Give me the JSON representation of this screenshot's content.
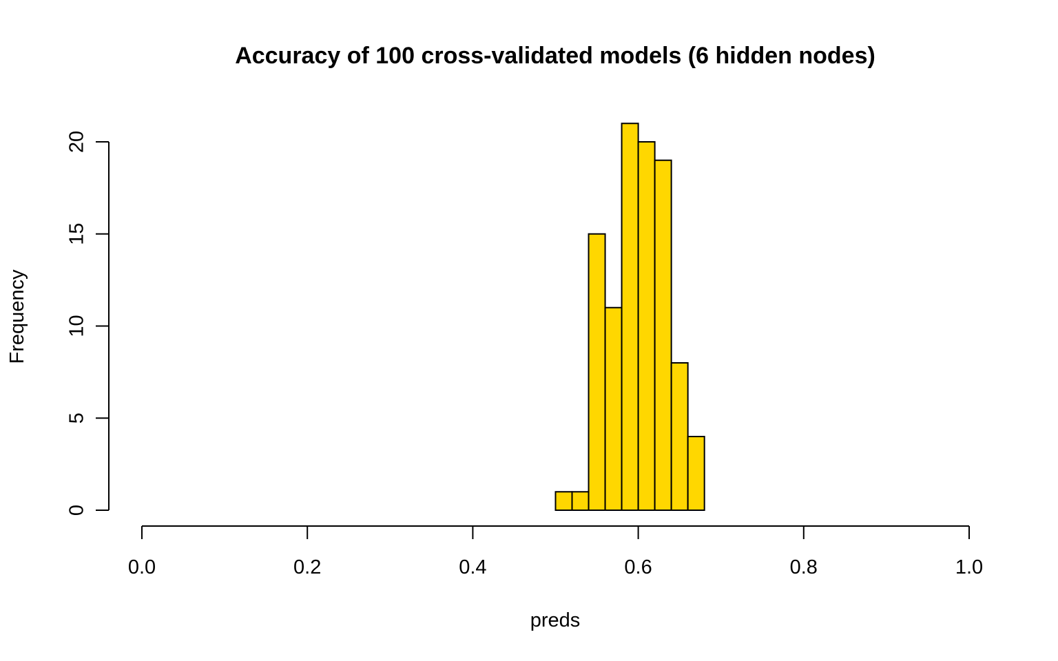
{
  "chart_data": {
    "type": "bar",
    "title": "Accuracy of 100 cross-validated models (6 hidden nodes)",
    "xlabel": "preds",
    "ylabel": "Frequency",
    "bin_width": 0.02,
    "bins": [
      {
        "start": 0.5,
        "end": 0.52,
        "count": 1
      },
      {
        "start": 0.52,
        "end": 0.54,
        "count": 1
      },
      {
        "start": 0.54,
        "end": 0.56,
        "count": 15
      },
      {
        "start": 0.56,
        "end": 0.58,
        "count": 11
      },
      {
        "start": 0.58,
        "end": 0.6,
        "count": 21
      },
      {
        "start": 0.6,
        "end": 0.62,
        "count": 20
      },
      {
        "start": 0.62,
        "end": 0.64,
        "count": 19
      },
      {
        "start": 0.64,
        "end": 0.66,
        "count": 8
      },
      {
        "start": 0.66,
        "end": 0.68,
        "count": 4
      }
    ],
    "xlim": [
      0,
      1
    ],
    "ylim": [
      0,
      21
    ],
    "x_ticks": [
      "0.0",
      "0.2",
      "0.4",
      "0.6",
      "0.8",
      "1.0"
    ],
    "y_ticks": [
      "0",
      "5",
      "10",
      "15",
      "20"
    ],
    "bar_color": "#FFD700",
    "grid": false,
    "legend": "none"
  }
}
